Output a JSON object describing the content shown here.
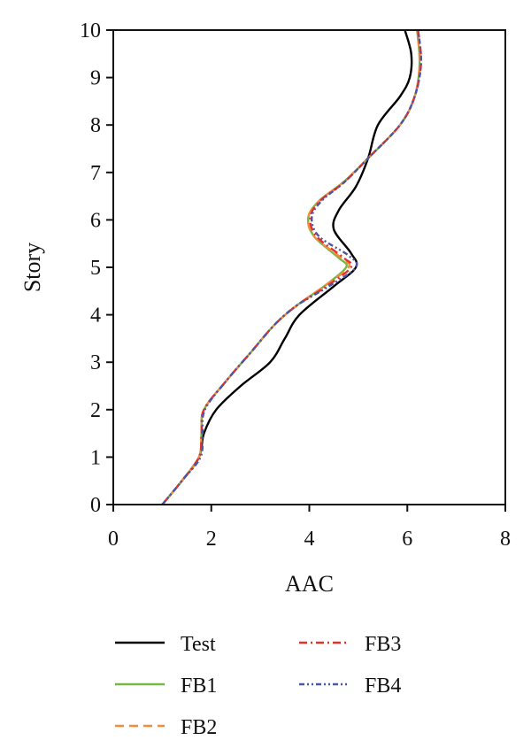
{
  "chart_data": {
    "type": "line",
    "title": "",
    "xlabel": "AAC",
    "ylabel": "Story",
    "xlim": [
      0,
      8
    ],
    "ylim": [
      0,
      10
    ],
    "xticks": [
      "0",
      "2",
      "4",
      "6",
      "8"
    ],
    "yticks": [
      "0",
      "1",
      "2",
      "3",
      "4",
      "5",
      "6",
      "7",
      "8",
      "9",
      "10"
    ],
    "grid": false,
    "legend_placement": "bottom",
    "series": [
      {
        "name": "Test",
        "color": "#000000",
        "dash": "solid",
        "points": [
          [
            1.0,
            0
          ],
          [
            1.4,
            0.5
          ],
          [
            1.75,
            1.0
          ],
          [
            1.85,
            1.5
          ],
          [
            2.1,
            2.0
          ],
          [
            2.6,
            2.5
          ],
          [
            3.2,
            3.0
          ],
          [
            3.5,
            3.5
          ],
          [
            3.8,
            4.0
          ],
          [
            4.5,
            4.6
          ],
          [
            4.95,
            5.0
          ],
          [
            4.85,
            5.3
          ],
          [
            4.5,
            5.8
          ],
          [
            4.6,
            6.2
          ],
          [
            4.95,
            6.7
          ],
          [
            5.2,
            7.3
          ],
          [
            5.4,
            8.0
          ],
          [
            5.85,
            8.6
          ],
          [
            6.05,
            9.0
          ],
          [
            6.08,
            9.5
          ],
          [
            5.95,
            10.0
          ]
        ]
      },
      {
        "name": "FB1",
        "color": "#77b843",
        "dash": "solid",
        "points": [
          [
            1.0,
            0
          ],
          [
            1.4,
            0.5
          ],
          [
            1.75,
            1.0
          ],
          [
            1.8,
            1.5
          ],
          [
            1.85,
            2.0
          ],
          [
            2.3,
            2.6
          ],
          [
            2.8,
            3.2
          ],
          [
            3.3,
            3.8
          ],
          [
            3.75,
            4.2
          ],
          [
            4.3,
            4.6
          ],
          [
            4.75,
            5.0
          ],
          [
            4.6,
            5.2
          ],
          [
            4.1,
            5.65
          ],
          [
            3.98,
            6.05
          ],
          [
            4.2,
            6.4
          ],
          [
            4.7,
            6.8
          ],
          [
            5.2,
            7.3
          ],
          [
            5.85,
            8.0
          ],
          [
            6.15,
            8.6
          ],
          [
            6.25,
            9.3
          ],
          [
            6.2,
            10.0
          ]
        ]
      },
      {
        "name": "FB2",
        "color": "#f58c3c",
        "dash": "10,6",
        "points": [
          [
            1.0,
            0
          ],
          [
            1.4,
            0.5
          ],
          [
            1.75,
            1.0
          ],
          [
            1.8,
            1.5
          ],
          [
            1.85,
            2.0
          ],
          [
            2.3,
            2.6
          ],
          [
            2.8,
            3.2
          ],
          [
            3.3,
            3.8
          ],
          [
            3.75,
            4.2
          ],
          [
            4.3,
            4.6
          ],
          [
            4.8,
            5.0
          ],
          [
            4.65,
            5.2
          ],
          [
            4.1,
            5.65
          ],
          [
            3.98,
            6.05
          ],
          [
            4.2,
            6.4
          ],
          [
            4.7,
            6.8
          ],
          [
            5.2,
            7.3
          ],
          [
            5.85,
            8.0
          ],
          [
            6.15,
            8.6
          ],
          [
            6.25,
            9.3
          ],
          [
            6.2,
            10.0
          ]
        ]
      },
      {
        "name": "FB3",
        "color": "#e8302a",
        "dash": "9,4,2,4",
        "points": [
          [
            1.0,
            0
          ],
          [
            1.4,
            0.5
          ],
          [
            1.75,
            1.0
          ],
          [
            1.8,
            1.5
          ],
          [
            1.85,
            2.0
          ],
          [
            2.3,
            2.6
          ],
          [
            2.8,
            3.2
          ],
          [
            3.3,
            3.8
          ],
          [
            3.75,
            4.2
          ],
          [
            4.35,
            4.6
          ],
          [
            4.85,
            5.0
          ],
          [
            4.7,
            5.2
          ],
          [
            4.15,
            5.65
          ],
          [
            4.02,
            6.05
          ],
          [
            4.22,
            6.4
          ],
          [
            4.72,
            6.8
          ],
          [
            5.2,
            7.3
          ],
          [
            5.85,
            8.0
          ],
          [
            6.15,
            8.6
          ],
          [
            6.28,
            9.3
          ],
          [
            6.22,
            10.0
          ]
        ]
      },
      {
        "name": "FB4",
        "color": "#4a56a6",
        "dash": "6,3,2,3,2,3",
        "points": [
          [
            1.0,
            0
          ],
          [
            1.4,
            0.5
          ],
          [
            1.78,
            1.0
          ],
          [
            1.82,
            1.5
          ],
          [
            1.87,
            2.0
          ],
          [
            2.3,
            2.6
          ],
          [
            2.8,
            3.2
          ],
          [
            3.3,
            3.8
          ],
          [
            3.75,
            4.2
          ],
          [
            4.4,
            4.6
          ],
          [
            4.95,
            5.0
          ],
          [
            4.8,
            5.25
          ],
          [
            4.2,
            5.65
          ],
          [
            4.05,
            6.05
          ],
          [
            4.25,
            6.4
          ],
          [
            4.72,
            6.8
          ],
          [
            5.2,
            7.3
          ],
          [
            5.85,
            8.0
          ],
          [
            6.15,
            8.6
          ],
          [
            6.28,
            9.3
          ],
          [
            6.22,
            10.0
          ]
        ]
      }
    ]
  }
}
